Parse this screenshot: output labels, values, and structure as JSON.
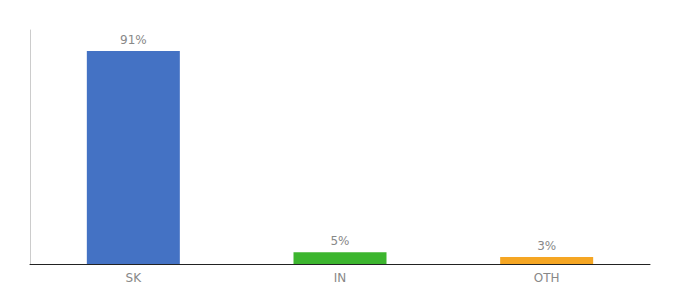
{
  "chart_data": {
    "type": "bar",
    "categories": [
      "SK",
      "IN",
      "OTH"
    ],
    "values": [
      91,
      5,
      3
    ],
    "value_labels": [
      "91%",
      "5%",
      "3%"
    ],
    "colors": [
      "#4472c4",
      "#3cb52e",
      "#f5a623"
    ],
    "ylim": [
      0,
      100
    ],
    "data_labels": true,
    "tick_labels": "x",
    "grid": false
  }
}
